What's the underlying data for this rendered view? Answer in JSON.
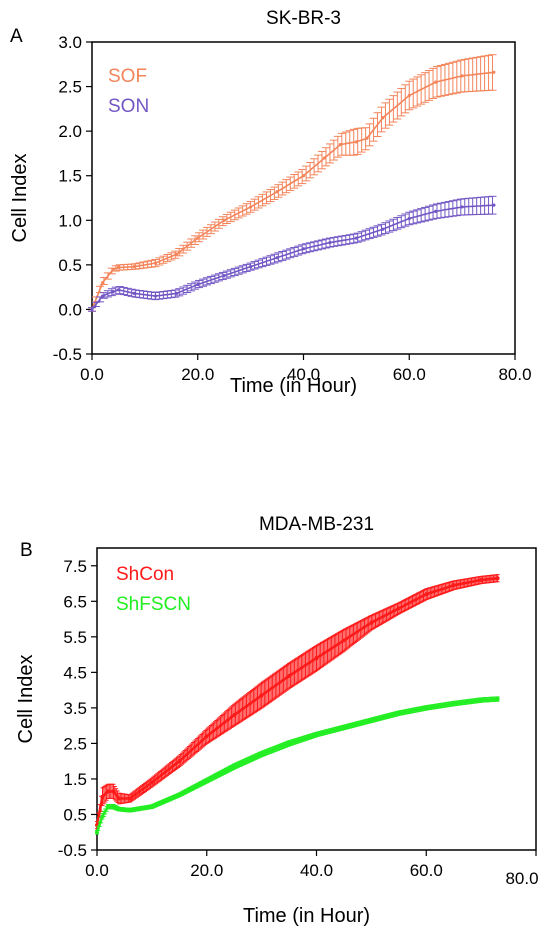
{
  "chart_data": [
    {
      "panel": "A",
      "type": "line",
      "title": "SK-BR-3",
      "xlabel": "Time (in Hour)",
      "ylabel": "Cell Index",
      "xlim": [
        0,
        80
      ],
      "ylim": [
        -0.5,
        3.0
      ],
      "xticks": [
        0,
        20,
        40,
        60,
        80
      ],
      "xtick_labels": [
        "0.0",
        "20.0",
        "40.0",
        "60.0",
        "80.0"
      ],
      "yticks": [
        -0.5,
        0,
        0.5,
        1,
        1.5,
        2,
        2.5,
        3
      ],
      "ytick_labels": [
        "-0.5",
        "0.0",
        "0.5",
        "1.0",
        "1.5",
        "2.0",
        "2.5",
        "3.0"
      ],
      "grid": false,
      "legend": "top-left",
      "series": [
        {
          "name": "SOF",
          "color": "#f4845a",
          "error_bars": true,
          "x": [
            0,
            2,
            4,
            5,
            8,
            12,
            16,
            20,
            25,
            30,
            35,
            40,
            44,
            47,
            50,
            52,
            55,
            60,
            65,
            70,
            76
          ],
          "y": [
            0.0,
            0.3,
            0.45,
            0.47,
            0.48,
            0.52,
            0.62,
            0.8,
            1.0,
            1.15,
            1.32,
            1.5,
            1.7,
            1.85,
            1.88,
            1.92,
            2.15,
            2.4,
            2.55,
            2.62,
            2.66
          ],
          "err": [
            0.02,
            0.04,
            0.03,
            0.03,
            0.03,
            0.04,
            0.04,
            0.05,
            0.05,
            0.06,
            0.07,
            0.08,
            0.1,
            0.12,
            0.15,
            0.12,
            0.14,
            0.16,
            0.17,
            0.18,
            0.2
          ]
        },
        {
          "name": "SON",
          "color": "#7257c4",
          "error_bars": true,
          "x": [
            0,
            2,
            4,
            5,
            8,
            12,
            16,
            20,
            25,
            30,
            35,
            40,
            45,
            50,
            55,
            60,
            65,
            70,
            76
          ],
          "y": [
            0.0,
            0.15,
            0.2,
            0.22,
            0.18,
            0.15,
            0.18,
            0.28,
            0.38,
            0.48,
            0.58,
            0.68,
            0.75,
            0.8,
            0.9,
            1.02,
            1.1,
            1.15,
            1.17
          ],
          "err": [
            0.02,
            0.03,
            0.04,
            0.04,
            0.04,
            0.04,
            0.04,
            0.04,
            0.04,
            0.04,
            0.05,
            0.05,
            0.05,
            0.05,
            0.06,
            0.07,
            0.08,
            0.09,
            0.1
          ]
        }
      ]
    },
    {
      "panel": "B",
      "type": "line",
      "title": "MDA-MB-231",
      "xlabel": "Time (in Hour)",
      "ylabel": "Cell Index",
      "xlim": [
        0,
        80
      ],
      "ylim": [
        -0.5,
        8.0
      ],
      "xticks": [
        0,
        20,
        40,
        60,
        80
      ],
      "xtick_labels": [
        "0.0",
        "20.0",
        "40.0",
        "60.0",
        "80.0"
      ],
      "yticks": [
        -0.5,
        0.5,
        1.5,
        2.5,
        3.5,
        4.5,
        5.5,
        6.5,
        7.5
      ],
      "ytick_labels": [
        "-0.5",
        "0.5",
        "1.5",
        "2.5",
        "3.5",
        "4.5",
        "5.5",
        "6.5",
        "7.5"
      ],
      "grid": false,
      "legend": "top-left",
      "series": [
        {
          "name": "ShCon",
          "color": "#ff1a1a",
          "error_bars": true,
          "x": [
            0,
            1,
            2,
            3,
            4,
            6,
            10,
            15,
            20,
            25,
            30,
            35,
            40,
            45,
            50,
            55,
            60,
            65,
            70,
            73
          ],
          "y": [
            0.2,
            1.0,
            1.15,
            1.15,
            0.95,
            0.95,
            1.4,
            2.0,
            2.7,
            3.3,
            3.85,
            4.4,
            4.9,
            5.4,
            5.9,
            6.3,
            6.7,
            6.95,
            7.1,
            7.15
          ],
          "err": [
            0.1,
            0.25,
            0.2,
            0.2,
            0.15,
            0.1,
            0.12,
            0.15,
            0.2,
            0.3,
            0.35,
            0.35,
            0.35,
            0.3,
            0.2,
            0.15,
            0.15,
            0.12,
            0.1,
            0.1
          ]
        },
        {
          "name": "ShFSCN",
          "color": "#22ee22",
          "error_bars": true,
          "x": [
            0,
            1,
            2,
            3,
            4,
            6,
            10,
            15,
            20,
            25,
            30,
            35,
            40,
            45,
            50,
            55,
            60,
            65,
            70,
            73
          ],
          "y": [
            0.0,
            0.45,
            0.72,
            0.72,
            0.65,
            0.62,
            0.72,
            1.05,
            1.45,
            1.85,
            2.2,
            2.5,
            2.75,
            2.95,
            3.15,
            3.35,
            3.5,
            3.62,
            3.72,
            3.75
          ],
          "err": [
            0.05,
            0.08,
            0.06,
            0.06,
            0.05,
            0.05,
            0.05,
            0.05,
            0.06,
            0.07,
            0.07,
            0.07,
            0.06,
            0.06,
            0.06,
            0.06,
            0.06,
            0.06,
            0.06,
            0.06
          ]
        }
      ]
    }
  ]
}
